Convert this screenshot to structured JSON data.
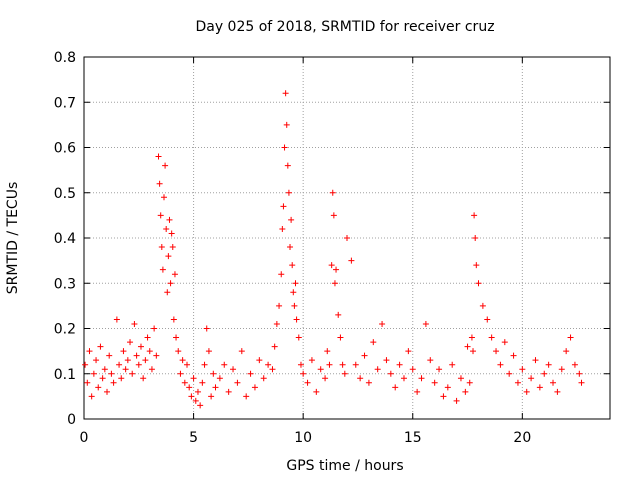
{
  "chart_data": {
    "type": "scatter",
    "title": "Day 025 of 2018, SRMTID for receiver cruz",
    "xlabel": "GPS time / hours",
    "ylabel": "SRMTID / TECUs",
    "xlim": [
      0,
      24
    ],
    "ylim": [
      0,
      0.8
    ],
    "x_ticks": [
      0,
      5,
      10,
      15,
      20
    ],
    "y_ticks": [
      0,
      0.1,
      0.2,
      0.3,
      0.4,
      0.5,
      0.6,
      0.7,
      0.8
    ],
    "x_tick_labels": [
      "0",
      "5",
      "10",
      "15",
      "20"
    ],
    "y_tick_labels": [
      "0",
      "0.1",
      "0.2",
      "0.3",
      "0.4",
      "0.5",
      "0.6",
      "0.7",
      "0.8"
    ],
    "grid": true,
    "marker": "+",
    "color": "#ff0000",
    "series": [
      {
        "name": "SRMTID",
        "x": [
          0.05,
          0.15,
          0.25,
          0.35,
          0.45,
          0.55,
          0.65,
          0.75,
          0.85,
          0.95,
          1.05,
          1.15,
          1.25,
          1.35,
          1.5,
          1.6,
          1.7,
          1.8,
          1.9,
          2.0,
          2.1,
          2.2,
          2.3,
          2.4,
          2.5,
          2.6,
          2.7,
          2.8,
          2.9,
          3.0,
          3.1,
          3.2,
          3.3,
          3.4,
          3.45,
          3.5,
          3.55,
          3.6,
          3.65,
          3.7,
          3.75,
          3.8,
          3.85,
          3.9,
          3.95,
          4.0,
          4.05,
          4.1,
          4.15,
          4.2,
          4.3,
          4.4,
          4.5,
          4.6,
          4.7,
          4.8,
          4.9,
          5.0,
          5.1,
          5.2,
          5.3,
          5.4,
          5.5,
          5.6,
          5.7,
          5.8,
          5.9,
          6.0,
          6.2,
          6.4,
          6.6,
          6.8,
          7.0,
          7.2,
          7.4,
          7.6,
          7.8,
          8.0,
          8.2,
          8.4,
          8.6,
          8.7,
          8.8,
          8.9,
          9.0,
          9.05,
          9.1,
          9.15,
          9.2,
          9.25,
          9.3,
          9.35,
          9.4,
          9.45,
          9.5,
          9.55,
          9.6,
          9.65,
          9.7,
          9.8,
          9.9,
          10.0,
          10.2,
          10.4,
          10.6,
          10.8,
          11.0,
          11.1,
          11.2,
          11.3,
          11.35,
          11.4,
          11.45,
          11.5,
          11.6,
          11.7,
          11.8,
          11.9,
          12.0,
          12.2,
          12.4,
          12.6,
          12.8,
          13.0,
          13.2,
          13.4,
          13.6,
          13.8,
          14.0,
          14.2,
          14.4,
          14.6,
          14.8,
          15.0,
          15.2,
          15.4,
          15.6,
          15.8,
          16.0,
          16.2,
          16.4,
          16.6,
          16.8,
          17.0,
          17.2,
          17.4,
          17.5,
          17.6,
          17.7,
          17.75,
          17.8,
          17.85,
          17.9,
          18.0,
          18.2,
          18.4,
          18.6,
          18.8,
          19.0,
          19.2,
          19.4,
          19.6,
          19.8,
          20.0,
          20.2,
          20.4,
          20.6,
          20.8,
          21.0,
          21.2,
          21.4,
          21.6,
          21.8,
          22.0,
          22.2,
          22.4,
          22.6,
          22.7
        ],
        "y": [
          0.12,
          0.08,
          0.15,
          0.05,
          0.1,
          0.13,
          0.07,
          0.16,
          0.09,
          0.11,
          0.06,
          0.14,
          0.1,
          0.08,
          0.22,
          0.12,
          0.09,
          0.15,
          0.11,
          0.13,
          0.17,
          0.1,
          0.21,
          0.14,
          0.12,
          0.16,
          0.09,
          0.13,
          0.18,
          0.15,
          0.11,
          0.2,
          0.14,
          0.58,
          0.52,
          0.45,
          0.38,
          0.33,
          0.49,
          0.56,
          0.42,
          0.28,
          0.36,
          0.44,
          0.3,
          0.41,
          0.38,
          0.22,
          0.32,
          0.18,
          0.15,
          0.1,
          0.13,
          0.08,
          0.12,
          0.07,
          0.05,
          0.09,
          0.04,
          0.06,
          0.03,
          0.08,
          0.12,
          0.2,
          0.15,
          0.05,
          0.1,
          0.07,
          0.09,
          0.12,
          0.06,
          0.11,
          0.08,
          0.15,
          0.05,
          0.1,
          0.07,
          0.13,
          0.09,
          0.12,
          0.11,
          0.16,
          0.21,
          0.25,
          0.32,
          0.42,
          0.47,
          0.6,
          0.72,
          0.65,
          0.56,
          0.5,
          0.38,
          0.44,
          0.34,
          0.28,
          0.25,
          0.3,
          0.22,
          0.18,
          0.12,
          0.1,
          0.08,
          0.13,
          0.06,
          0.11,
          0.09,
          0.15,
          0.12,
          0.34,
          0.5,
          0.45,
          0.3,
          0.33,
          0.23,
          0.18,
          0.12,
          0.1,
          0.4,
          0.35,
          0.12,
          0.09,
          0.14,
          0.08,
          0.17,
          0.11,
          0.21,
          0.13,
          0.1,
          0.07,
          0.12,
          0.09,
          0.15,
          0.11,
          0.06,
          0.09,
          0.21,
          0.13,
          0.08,
          0.11,
          0.05,
          0.07,
          0.12,
          0.04,
          0.09,
          0.06,
          0.16,
          0.08,
          0.18,
          0.15,
          0.45,
          0.4,
          0.34,
          0.3,
          0.25,
          0.22,
          0.18,
          0.15,
          0.12,
          0.17,
          0.1,
          0.14,
          0.08,
          0.11,
          0.06,
          0.09,
          0.13,
          0.07,
          0.1,
          0.12,
          0.08,
          0.06,
          0.11,
          0.15,
          0.18,
          0.12,
          0.1,
          0.08
        ]
      }
    ]
  }
}
